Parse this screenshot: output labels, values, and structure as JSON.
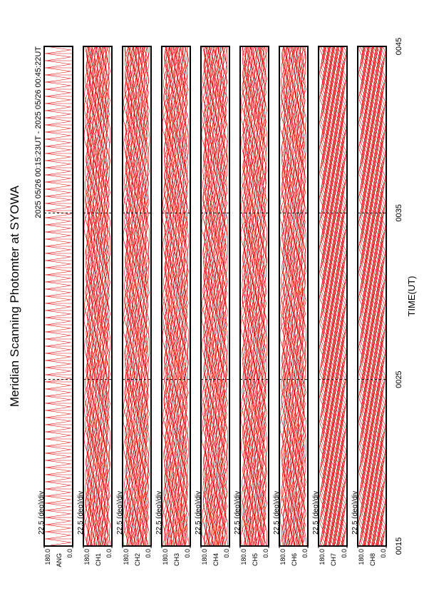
{
  "chart_data": {
    "type": "stacked-trace",
    "title": "Meridian Scanning Photomter at SYOWA",
    "subtitle": "2025 05/26 00:15:23UT - 2025 05/26 00:45:22UT",
    "x_label": "TIME(UT)",
    "xlim": [
      15,
      45
    ],
    "xticks": [
      {
        "value": 15,
        "label": "0015"
      },
      {
        "value": 25,
        "label": "0025"
      },
      {
        "value": 35,
        "label": "0035"
      },
      {
        "value": 45,
        "label": "0045"
      }
    ],
    "color": "#e00000",
    "panels": [
      {
        "name": "ANG",
        "scale": "22.5 (deg)/div",
        "ylim": [
          0,
          180
        ],
        "yticks": [
          {
            "value": 0,
            "label": "0.0"
          },
          {
            "value": 180,
            "label": "180.0"
          }
        ]
      },
      {
        "name": "CH1",
        "scale": "22.5 (deg)/div",
        "ylim": [
          0,
          180
        ],
        "yticks": [
          {
            "value": 0,
            "label": "0.0"
          },
          {
            "value": 180,
            "label": "180.0"
          }
        ]
      },
      {
        "name": "CH2",
        "scale": "22.5 (deg)/div",
        "ylim": [
          0,
          180
        ],
        "yticks": [
          {
            "value": 0,
            "label": "0.0"
          },
          {
            "value": 180,
            "label": "180.0"
          }
        ]
      },
      {
        "name": "CH3",
        "scale": "22.5 (deg)/div",
        "ylim": [
          0,
          180
        ],
        "yticks": [
          {
            "value": 0,
            "label": "0.0"
          },
          {
            "value": 180,
            "label": "180.0"
          }
        ]
      },
      {
        "name": "CH4",
        "scale": "22.5 (deg)/div",
        "ylim": [
          0,
          180
        ],
        "yticks": [
          {
            "value": 0,
            "label": "0.0"
          },
          {
            "value": 180,
            "label": "180.0"
          }
        ]
      },
      {
        "name": "CH5",
        "scale": "22.5 (deg)/div",
        "ylim": [
          0,
          180
        ],
        "yticks": [
          {
            "value": 0,
            "label": "0.0"
          },
          {
            "value": 180,
            "label": "180.0"
          }
        ]
      },
      {
        "name": "CH6",
        "scale": "22.5 (deg)/div",
        "ylim": [
          0,
          180
        ],
        "yticks": [
          {
            "value": 0,
            "label": "0.0"
          },
          {
            "value": 180,
            "label": "180.0"
          }
        ]
      },
      {
        "name": "CH7",
        "scale": "22.5 (deg)/div",
        "ylim": [
          0,
          180
        ],
        "yticks": [
          {
            "value": 0,
            "label": "0.0"
          },
          {
            "value": 180,
            "label": "180.0"
          }
        ]
      },
      {
        "name": "CH8",
        "scale": "22.5 (deg)/div",
        "ylim": [
          0,
          180
        ],
        "yticks": [
          {
            "value": 0,
            "label": "0.0"
          },
          {
            "value": 180,
            "label": "180.0"
          }
        ]
      }
    ]
  }
}
